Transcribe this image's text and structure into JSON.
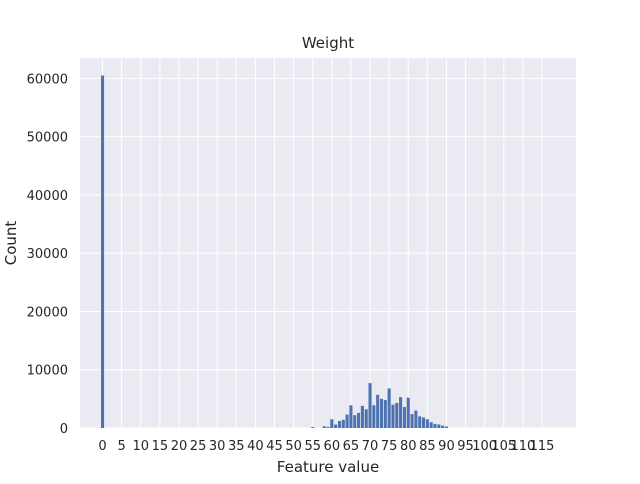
{
  "chart_data": {
    "type": "bar",
    "title": "Weight",
    "xlabel": "Feature value",
    "ylabel": "Count",
    "grid": true,
    "bar_color": "#4c72b0",
    "background_color": "#eaeaf2",
    "grid_color": "#ffffff",
    "xlim": [
      -5.9,
      123.9
    ],
    "ylim": [
      0,
      63500
    ],
    "xticks": [
      0,
      5,
      10,
      15,
      20,
      25,
      30,
      35,
      40,
      45,
      50,
      55,
      60,
      65,
      70,
      75,
      80,
      85,
      90,
      95,
      100,
      105,
      110,
      115
    ],
    "xtick_labels": [
      "0",
      "5",
      "10",
      "15",
      "20",
      "25",
      "30",
      "35",
      "40",
      "45",
      "50",
      "55",
      "60",
      "65",
      "70",
      "75",
      "80",
      "85",
      "90",
      "95",
      "100",
      "105",
      "110",
      "115"
    ],
    "yticks": [
      0,
      10000,
      20000,
      30000,
      40000,
      50000,
      60000
    ],
    "ytick_labels": [
      "0",
      "10000",
      "20000",
      "30000",
      "40000",
      "50000",
      "60000"
    ],
    "x": [
      0,
      55,
      58,
      59,
      60,
      61,
      62,
      63,
      64,
      65,
      66,
      67,
      68,
      69,
      70,
      71,
      72,
      73,
      74,
      75,
      76,
      77,
      78,
      79,
      80,
      81,
      82,
      83,
      84,
      85,
      86,
      87,
      88,
      89,
      90
    ],
    "values": [
      60500,
      150,
      300,
      200,
      1500,
      600,
      1200,
      1400,
      2300,
      3900,
      2200,
      2600,
      3800,
      3200,
      7700,
      3900,
      5700,
      5000,
      4800,
      6800,
      4000,
      4300,
      5300,
      3600,
      5200,
      2400,
      3000,
      2000,
      1800,
      1500,
      1000,
      700,
      600,
      400,
      250
    ]
  }
}
